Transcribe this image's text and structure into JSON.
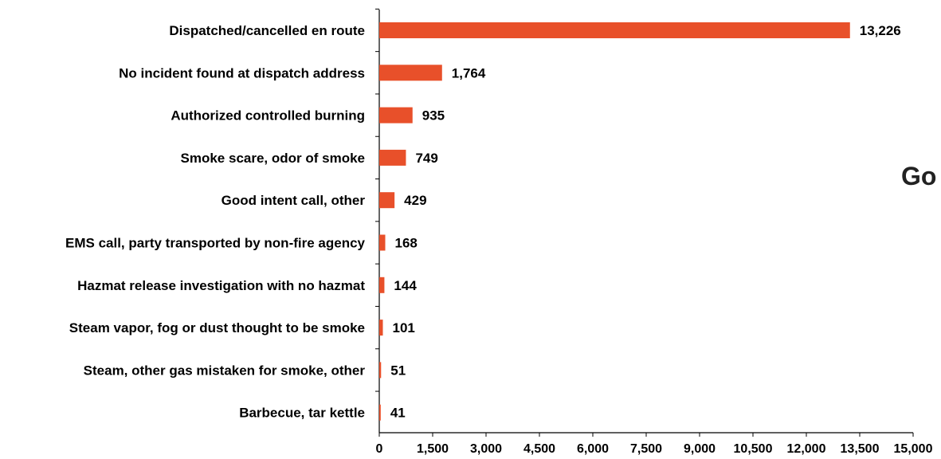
{
  "side_text": "Go",
  "chart_data": {
    "type": "bar",
    "orientation": "horizontal",
    "categories": [
      "Dispatched/cancelled en route",
      "No incident found at dispatch address",
      "Authorized controlled burning",
      "Smoke scare, odor of smoke",
      "Good intent call, other",
      "EMS call, party transported by non-fire agency",
      "Hazmat release investigation with no hazmat",
      "Steam vapor, fog or dust thought to be smoke",
      "Steam, other gas mistaken for smoke, other",
      "Barbecue, tar kettle"
    ],
    "values": [
      13226,
      1764,
      935,
      749,
      429,
      168,
      144,
      101,
      51,
      41
    ],
    "value_labels": [
      "13,226",
      "1,764",
      "935",
      "749",
      "429",
      "168",
      "144",
      "101",
      "51",
      "41"
    ],
    "x_ticks": [
      0,
      1500,
      3000,
      4500,
      6000,
      7500,
      9000,
      10500,
      12000,
      13500,
      15000
    ],
    "x_tick_labels": [
      "0",
      "1,500",
      "3,000",
      "4,500",
      "6,000",
      "7,500",
      "9,000",
      "10,500",
      "12,000",
      "13,500",
      "15,000"
    ],
    "xlim": [
      0,
      15000
    ],
    "bar_color": "#e8502a",
    "grid": false,
    "title": "",
    "xlabel": "",
    "ylabel": ""
  }
}
